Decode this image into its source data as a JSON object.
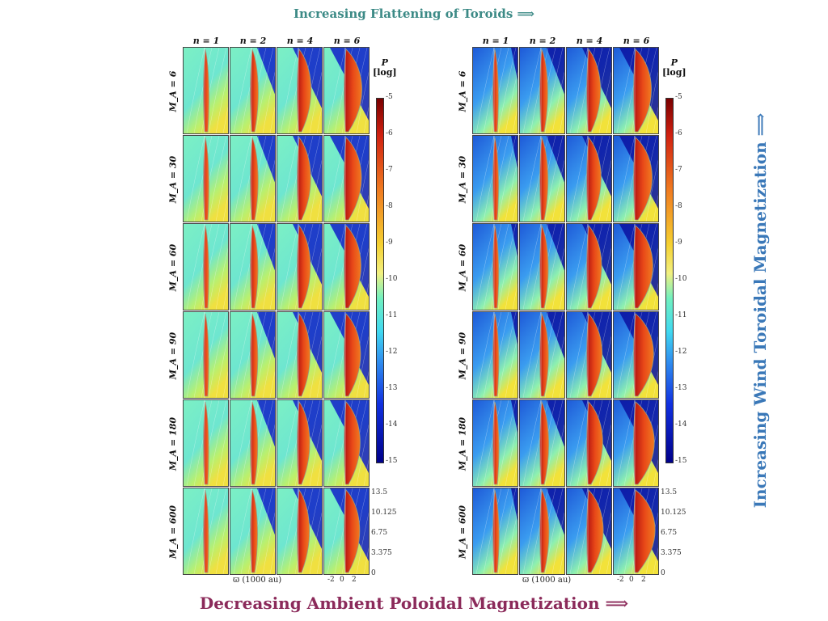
{
  "titles": {
    "top": "Increasing Flattening of Toroids ⟹",
    "bottom": "Decreasing Ambient Poloidal Magnetization ⟹",
    "side": "Increasing Wind Toroidal Magnetization ⟹"
  },
  "colors": {
    "top_title": "#3c8a86",
    "bottom_title": "#8b2a5a",
    "side_title": "#3a78b8"
  },
  "columns": [
    "n = 1",
    "n = 2",
    "n = 4",
    "n = 6"
  ],
  "rows": [
    "M_A = 6",
    "M_A = 30",
    "M_A = 60",
    "M_A = 90",
    "M_A = 180",
    "M_A = 600"
  ],
  "colorbar": {
    "title_line1": "P",
    "title_line2": "[log]",
    "ticks": [
      "-5",
      "-6",
      "-7",
      "-8",
      "-9",
      "-10",
      "-11",
      "-12",
      "-13",
      "-14",
      "-15"
    ]
  },
  "yaxis": {
    "ticks": [
      "13.5",
      "10.125",
      "6.75",
      "3.375",
      "0"
    ]
  },
  "xaxis": {
    "label": "ϖ (1000 au)",
    "ticks": [
      "-2",
      "0",
      "2"
    ]
  },
  "panels": [
    {
      "name": "left",
      "background": "ambient"
    },
    {
      "name": "right",
      "background": "wind"
    }
  ]
}
